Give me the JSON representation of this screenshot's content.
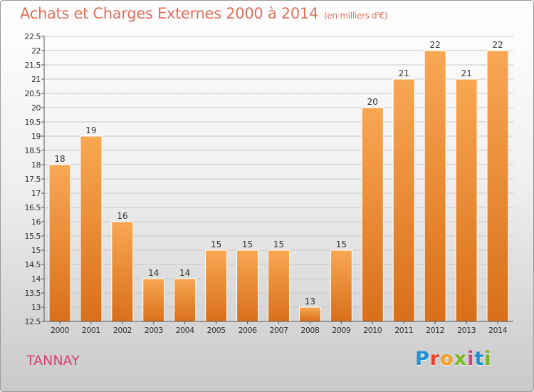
{
  "header": {
    "title": "Achats et Charges Externes 2000 à 2014",
    "subtitle": "(en milliers d'€)"
  },
  "footer": {
    "commune": "TANNAY",
    "logo_text": "Proxiti",
    "logo_colors": [
      "#1f8fd6",
      "#e8432a",
      "#f2a01c",
      "#7ab51d",
      "#d5427a",
      "#1f8fd6",
      "#7ab51d"
    ]
  },
  "colors": {
    "bar_light": "#f8a753",
    "bar_dark": "#d96f1a",
    "axis": "#555555",
    "grid": "#c8c8c8",
    "text": "#333333"
  },
  "chart_data": {
    "type": "bar",
    "categories": [
      "2000",
      "2001",
      "2002",
      "2003",
      "2004",
      "2005",
      "2006",
      "2007",
      "2008",
      "2009",
      "2010",
      "2011",
      "2012",
      "2013",
      "2014"
    ],
    "values": [
      18,
      19,
      16,
      14,
      14,
      15,
      15,
      15,
      13,
      15,
      20,
      21,
      22,
      21,
      22
    ],
    "data_labels": [
      "18",
      "19",
      "16",
      "14",
      "14",
      "15",
      "15",
      "15",
      "13",
      "15",
      "20",
      "21",
      "22",
      "21",
      "22"
    ],
    "ylim": [
      12.5,
      22.5
    ],
    "yticks": [
      "12.5",
      "13",
      "13.5",
      "14",
      "14.5",
      "15",
      "15.5",
      "16",
      "16.5",
      "17",
      "17.5",
      "18",
      "18.5",
      "19",
      "19.5",
      "20",
      "20.5",
      "21",
      "21.5",
      "22",
      "22.5"
    ],
    "grid": true,
    "title": "Achats et Charges Externes 2000 à 2014",
    "xlabel": "",
    "ylabel": ""
  }
}
